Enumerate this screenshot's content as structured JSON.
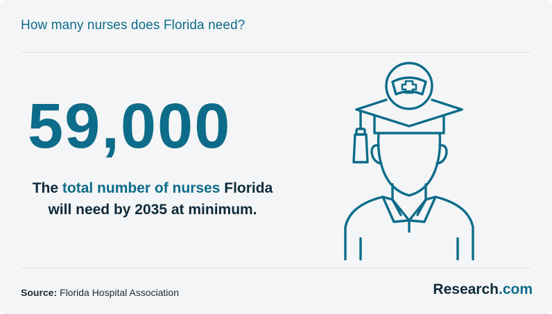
{
  "header": {
    "title": "How many nurses does Florida need?"
  },
  "stat": {
    "value": "59,000"
  },
  "description": {
    "part1": "The ",
    "highlight": "total number of nurses",
    "part2": " Florida",
    "line2": "will need by 2035 at minimum."
  },
  "illustration": {
    "icon": "nurse-graduate-icon",
    "stroke_color": "#0d6c89"
  },
  "footer": {
    "source_label": "Source:",
    "source_text": " Florida Hospital Association",
    "brand_name": "Research",
    "brand_suffix": ".com"
  },
  "colors": {
    "accent": "#0d6c89",
    "text_dark": "#0e2a3a",
    "background": "#f4f5f6"
  }
}
